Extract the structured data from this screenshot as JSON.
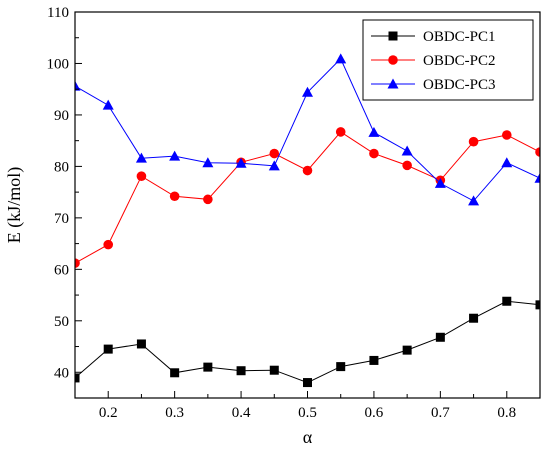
{
  "chart_data": {
    "type": "line",
    "xlabel": "α",
    "ylabel": "E (kJ/mol)",
    "xlim": [
      0.15,
      0.85
    ],
    "ylim": [
      35,
      110
    ],
    "x_ticks": [
      0.2,
      0.3,
      0.4,
      0.5,
      0.6,
      0.7,
      0.8
    ],
    "x_tick_labels": [
      "0.2",
      "0.3",
      "0.4",
      "0.5",
      "0.6",
      "0.7",
      "0.8"
    ],
    "y_ticks": [
      40,
      50,
      60,
      70,
      80,
      90,
      100,
      110
    ],
    "y_tick_labels": [
      "40",
      "50",
      "60",
      "70",
      "80",
      "90",
      "100",
      "110"
    ],
    "grid": false,
    "legend_position": "top-right",
    "x": [
      0.15,
      0.2,
      0.25,
      0.3,
      0.35,
      0.4,
      0.45,
      0.5,
      0.55,
      0.6,
      0.65,
      0.7,
      0.75,
      0.8,
      0.85
    ],
    "series": [
      {
        "name": "OBDC-PC1",
        "color": "#000000",
        "marker": "square",
        "values": [
          38.9,
          44.5,
          45.5,
          39.9,
          41.0,
          40.3,
          40.4,
          38.0,
          41.1,
          42.3,
          44.3,
          46.8,
          50.5,
          53.8,
          53.1
        ]
      },
      {
        "name": "OBDC-PC2",
        "color": "#ff0000",
        "marker": "circle",
        "values": [
          61.2,
          64.8,
          78.1,
          74.2,
          73.6,
          80.8,
          82.5,
          79.2,
          86.7,
          82.5,
          80.2,
          77.3,
          84.8,
          86.1,
          82.8
        ]
      },
      {
        "name": "OBDC-PC3",
        "color": "#0000ff",
        "marker": "triangle",
        "values": [
          95.6,
          91.9,
          81.6,
          82.0,
          80.7,
          80.6,
          80.1,
          94.4,
          100.9,
          86.6,
          83.0,
          76.7,
          73.3,
          80.7,
          77.7
        ]
      }
    ]
  }
}
